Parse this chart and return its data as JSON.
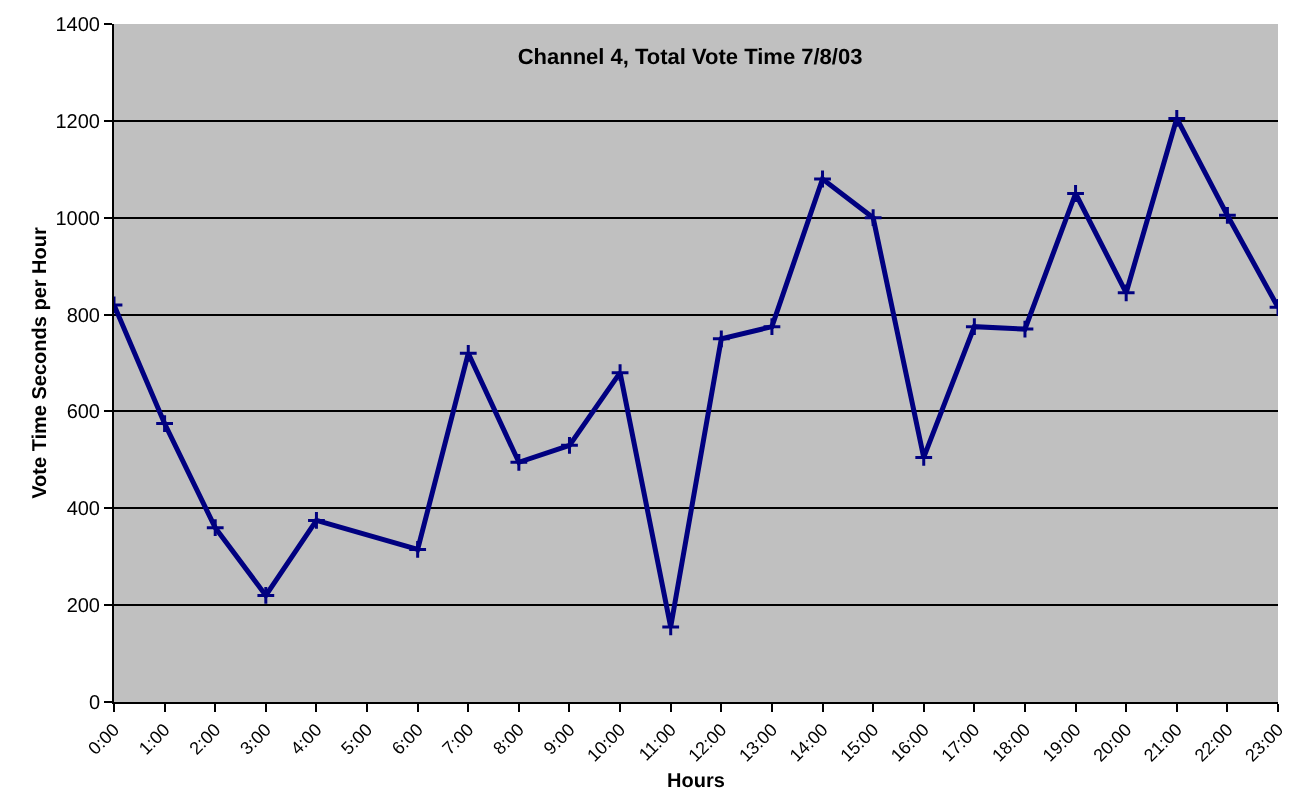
{
  "chart_data": {
    "type": "line",
    "title": "Channel 4, Total Vote Time 7/8/03",
    "xlabel": "Hours",
    "ylabel": "Vote Time Seconds per Hour",
    "categories": [
      "0:00",
      "1:00",
      "2:00",
      "3:00",
      "4:00",
      "5:00",
      "6:00",
      "7:00",
      "8:00",
      "9:00",
      "10:00",
      "11:00",
      "12:00",
      "13:00",
      "14:00",
      "15:00",
      "16:00",
      "17:00",
      "18:00",
      "19:00",
      "20:00",
      "21:00",
      "22:00",
      "23:00"
    ],
    "series": [
      {
        "color": "#000080",
        "values": [
          820,
          575,
          360,
          220,
          375,
          null,
          315,
          720,
          495,
          530,
          680,
          155,
          750,
          775,
          1080,
          1000,
          505,
          775,
          770,
          1050,
          845,
          1205,
          1005,
          815
        ]
      }
    ],
    "ylim": [
      0,
      1400
    ],
    "yticks": [
      0,
      200,
      400,
      600,
      800,
      1000,
      1200,
      1400
    ],
    "grid": "y",
    "marker": "cross",
    "line_style": "solid"
  }
}
